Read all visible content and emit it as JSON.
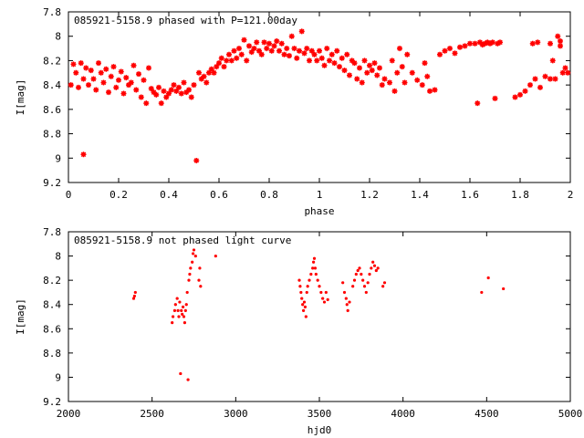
{
  "chart_data": [
    {
      "type": "scatter",
      "title": "085921-5158.9 phased with P=121.00day",
      "xlabel": "phase",
      "ylabel": "I[mag]",
      "xlim": [
        0,
        2
      ],
      "ylim": [
        9.2,
        7.8
      ],
      "y_inverted": true,
      "xticks": [
        "0",
        "0.2",
        "0.4",
        "0.6",
        "0.8",
        "1",
        "1.2",
        "1.4",
        "1.6",
        "1.8",
        "2"
      ],
      "yticks": [
        "7.8",
        "8",
        "8.2",
        "8.4",
        "8.6",
        "8.8",
        "9",
        "9.2"
      ],
      "marker": "star",
      "color": "#ff0000",
      "grid": false,
      "series": [
        {
          "points": [
            [
              0.01,
              8.4
            ],
            [
              0.02,
              8.23
            ],
            [
              0.03,
              8.3
            ],
            [
              0.04,
              8.42
            ],
            [
              0.05,
              8.22
            ],
            [
              0.06,
              8.35
            ],
            [
              0.06,
              8.97
            ],
            [
              0.07,
              8.26
            ],
            [
              0.08,
              8.4
            ],
            [
              0.09,
              8.28
            ],
            [
              0.1,
              8.35
            ],
            [
              0.11,
              8.44
            ],
            [
              0.12,
              8.22
            ],
            [
              0.13,
              8.3
            ],
            [
              0.14,
              8.38
            ],
            [
              0.15,
              8.27
            ],
            [
              0.16,
              8.46
            ],
            [
              0.17,
              8.33
            ],
            [
              0.18,
              8.25
            ],
            [
              0.19,
              8.42
            ],
            [
              0.2,
              8.36
            ],
            [
              0.21,
              8.29
            ],
            [
              0.22,
              8.47
            ],
            [
              0.23,
              8.34
            ],
            [
              0.24,
              8.4
            ],
            [
              0.25,
              8.38
            ],
            [
              0.26,
              8.24
            ],
            [
              0.27,
              8.44
            ],
            [
              0.28,
              8.31
            ],
            [
              0.29,
              8.5
            ],
            [
              0.3,
              8.36
            ],
            [
              0.31,
              8.55
            ],
            [
              0.32,
              8.26
            ],
            [
              0.33,
              8.43
            ],
            [
              0.34,
              8.46
            ],
            [
              0.35,
              8.48
            ],
            [
              0.36,
              8.42
            ],
            [
              0.37,
              8.55
            ],
            [
              0.38,
              8.45
            ],
            [
              0.39,
              8.5
            ],
            [
              0.4,
              8.47
            ],
            [
              0.41,
              8.44
            ],
            [
              0.42,
              8.4
            ],
            [
              0.43,
              8.45
            ],
            [
              0.44,
              8.42
            ],
            [
              0.45,
              8.47
            ],
            [
              0.46,
              8.38
            ],
            [
              0.47,
              8.46
            ],
            [
              0.48,
              8.44
            ],
            [
              0.49,
              8.5
            ],
            [
              0.5,
              8.4
            ],
            [
              0.51,
              9.02
            ],
            [
              0.52,
              8.3
            ],
            [
              0.53,
              8.35
            ],
            [
              0.54,
              8.33
            ],
            [
              0.55,
              8.38
            ],
            [
              0.56,
              8.3
            ],
            [
              0.57,
              8.27
            ],
            [
              0.58,
              8.3
            ],
            [
              0.59,
              8.25
            ],
            [
              0.6,
              8.22
            ],
            [
              0.61,
              8.18
            ],
            [
              0.62,
              8.25
            ],
            [
              0.63,
              8.2
            ],
            [
              0.64,
              8.15
            ],
            [
              0.65,
              8.2
            ],
            [
              0.66,
              8.12
            ],
            [
              0.67,
              8.18
            ],
            [
              0.68,
              8.1
            ],
            [
              0.69,
              8.15
            ],
            [
              0.7,
              8.03
            ],
            [
              0.71,
              8.2
            ],
            [
              0.72,
              8.08
            ],
            [
              0.73,
              8.13
            ],
            [
              0.74,
              8.1
            ],
            [
              0.75,
              8.05
            ],
            [
              0.76,
              8.12
            ],
            [
              0.77,
              8.15
            ],
            [
              0.78,
              8.05
            ],
            [
              0.79,
              8.1
            ],
            [
              0.8,
              8.06
            ],
            [
              0.81,
              8.12
            ],
            [
              0.82,
              8.08
            ],
            [
              0.83,
              8.04
            ],
            [
              0.84,
              8.12
            ],
            [
              0.85,
              8.06
            ],
            [
              0.86,
              8.15
            ],
            [
              0.87,
              8.1
            ],
            [
              0.88,
              8.16
            ],
            [
              0.89,
              8.0
            ],
            [
              0.9,
              8.1
            ],
            [
              0.91,
              8.18
            ],
            [
              0.92,
              8.12
            ],
            [
              0.93,
              7.96
            ],
            [
              0.94,
              8.14
            ],
            [
              0.95,
              8.1
            ],
            [
              0.96,
              8.2
            ],
            [
              0.97,
              8.12
            ],
            [
              0.98,
              8.15
            ],
            [
              0.99,
              8.2
            ],
            [
              1.0,
              8.12
            ],
            [
              1.01,
              8.18
            ],
            [
              1.02,
              8.24
            ],
            [
              1.03,
              8.1
            ],
            [
              1.04,
              8.2
            ],
            [
              1.05,
              8.15
            ],
            [
              1.06,
              8.22
            ],
            [
              1.07,
              8.12
            ],
            [
              1.08,
              8.25
            ],
            [
              1.09,
              8.18
            ],
            [
              1.1,
              8.28
            ],
            [
              1.11,
              8.15
            ],
            [
              1.12,
              8.32
            ],
            [
              1.13,
              8.2
            ],
            [
              1.14,
              8.22
            ],
            [
              1.15,
              8.35
            ],
            [
              1.16,
              8.26
            ],
            [
              1.17,
              8.38
            ],
            [
              1.18,
              8.2
            ],
            [
              1.19,
              8.3
            ],
            [
              1.2,
              8.24
            ],
            [
              1.21,
              8.28
            ],
            [
              1.22,
              8.22
            ],
            [
              1.23,
              8.32
            ],
            [
              1.24,
              8.26
            ],
            [
              1.25,
              8.4
            ],
            [
              1.26,
              8.35
            ],
            [
              1.28,
              8.38
            ],
            [
              1.29,
              8.2
            ],
            [
              1.3,
              8.45
            ],
            [
              1.31,
              8.3
            ],
            [
              1.32,
              8.1
            ],
            [
              1.33,
              8.25
            ],
            [
              1.34,
              8.38
            ],
            [
              1.35,
              8.15
            ],
            [
              1.37,
              8.3
            ],
            [
              1.39,
              8.36
            ],
            [
              1.41,
              8.4
            ],
            [
              1.42,
              8.22
            ],
            [
              1.43,
              8.33
            ],
            [
              1.44,
              8.45
            ],
            [
              1.46,
              8.44
            ],
            [
              1.48,
              8.15
            ],
            [
              1.5,
              8.12
            ],
            [
              1.52,
              8.1
            ],
            [
              1.54,
              8.14
            ],
            [
              1.56,
              8.09
            ],
            [
              1.58,
              8.08
            ],
            [
              1.6,
              8.06
            ],
            [
              1.62,
              8.06
            ],
            [
              1.63,
              8.55
            ],
            [
              1.64,
              8.05
            ],
            [
              1.65,
              8.07
            ],
            [
              1.66,
              8.06
            ],
            [
              1.67,
              8.05
            ],
            [
              1.68,
              8.06
            ],
            [
              1.69,
              8.05
            ],
            [
              1.7,
              8.51
            ],
            [
              1.71,
              8.06
            ],
            [
              1.72,
              8.05
            ],
            [
              1.78,
              8.5
            ],
            [
              1.8,
              8.48
            ],
            [
              1.82,
              8.45
            ],
            [
              1.84,
              8.4
            ],
            [
              1.86,
              8.35
            ],
            [
              1.88,
              8.42
            ],
            [
              1.9,
              8.33
            ],
            [
              1.92,
              8.35
            ],
            [
              1.93,
              8.2
            ],
            [
              1.94,
              8.35
            ],
            [
              1.95,
              8.0
            ],
            [
              1.96,
              8.08
            ],
            [
              1.97,
              8.3
            ],
            [
              1.98,
              8.26
            ],
            [
              1.99,
              8.3
            ],
            [
              1.85,
              8.06
            ],
            [
              1.87,
              8.05
            ],
            [
              1.92,
              8.06
            ],
            [
              1.96,
              8.04
            ]
          ]
        }
      ]
    },
    {
      "type": "scatter",
      "title": "085921-5158.9 not phased light curve",
      "xlabel": "hjd0",
      "ylabel": "I[mag]",
      "xlim": [
        2000,
        5000
      ],
      "ylim": [
        9.2,
        7.8
      ],
      "y_inverted": true,
      "xticks": [
        "2000",
        "2500",
        "3000",
        "3500",
        "4000",
        "4500",
        "5000"
      ],
      "yticks": [
        "7.8",
        "8",
        "8.2",
        "8.4",
        "8.6",
        "8.8",
        "9",
        "9.2"
      ],
      "marker": "dot",
      "color": "#ff0000",
      "grid": false,
      "series": [
        {
          "points": [
            [
              2390,
              8.35
            ],
            [
              2395,
              8.33
            ],
            [
              2400,
              8.3
            ],
            [
              2620,
              8.55
            ],
            [
              2625,
              8.5
            ],
            [
              2635,
              8.45
            ],
            [
              2640,
              8.4
            ],
            [
              2650,
              8.35
            ],
            [
              2655,
              8.45
            ],
            [
              2660,
              8.5
            ],
            [
              2665,
              8.38
            ],
            [
              2670,
              8.97
            ],
            [
              2675,
              8.45
            ],
            [
              2680,
              8.48
            ],
            [
              2685,
              8.42
            ],
            [
              2690,
              8.5
            ],
            [
              2695,
              8.55
            ],
            [
              2700,
              8.45
            ],
            [
              2705,
              8.4
            ],
            [
              2710,
              8.3
            ],
            [
              2715,
              9.02
            ],
            [
              2720,
              8.2
            ],
            [
              2725,
              8.15
            ],
            [
              2730,
              8.1
            ],
            [
              2740,
              8.05
            ],
            [
              2745,
              7.98
            ],
            [
              2750,
              7.95
            ],
            [
              2760,
              8.0
            ],
            [
              2780,
              8.2
            ],
            [
              2785,
              8.1
            ],
            [
              2790,
              8.25
            ],
            [
              2880,
              8.0
            ],
            [
              3380,
              8.2
            ],
            [
              3385,
              8.25
            ],
            [
              3390,
              8.3
            ],
            [
              3395,
              8.35
            ],
            [
              3400,
              8.4
            ],
            [
              3405,
              8.45
            ],
            [
              3410,
              8.38
            ],
            [
              3415,
              8.42
            ],
            [
              3420,
              8.5
            ],
            [
              3425,
              8.3
            ],
            [
              3430,
              8.25
            ],
            [
              3440,
              8.2
            ],
            [
              3450,
              8.15
            ],
            [
              3460,
              8.1
            ],
            [
              3465,
              8.05
            ],
            [
              3470,
              8.02
            ],
            [
              3475,
              8.1
            ],
            [
              3480,
              8.15
            ],
            [
              3490,
              8.2
            ],
            [
              3500,
              8.25
            ],
            [
              3510,
              8.3
            ],
            [
              3520,
              8.35
            ],
            [
              3530,
              8.38
            ],
            [
              3540,
              8.3
            ],
            [
              3550,
              8.36
            ],
            [
              3640,
              8.22
            ],
            [
              3650,
              8.3
            ],
            [
              3660,
              8.35
            ],
            [
              3665,
              8.4
            ],
            [
              3670,
              8.45
            ],
            [
              3680,
              8.38
            ],
            [
              3700,
              8.25
            ],
            [
              3710,
              8.2
            ],
            [
              3720,
              8.15
            ],
            [
              3730,
              8.12
            ],
            [
              3740,
              8.1
            ],
            [
              3750,
              8.15
            ],
            [
              3760,
              8.2
            ],
            [
              3770,
              8.25
            ],
            [
              3780,
              8.3
            ],
            [
              3790,
              8.22
            ],
            [
              3800,
              8.15
            ],
            [
              3810,
              8.1
            ],
            [
              3820,
              8.05
            ],
            [
              3830,
              8.08
            ],
            [
              3840,
              8.12
            ],
            [
              3850,
              8.1
            ],
            [
              3880,
              8.25
            ],
            [
              3890,
              8.22
            ],
            [
              4470,
              8.3
            ],
            [
              4510,
              8.18
            ],
            [
              4600,
              8.27
            ]
          ]
        }
      ]
    }
  ]
}
